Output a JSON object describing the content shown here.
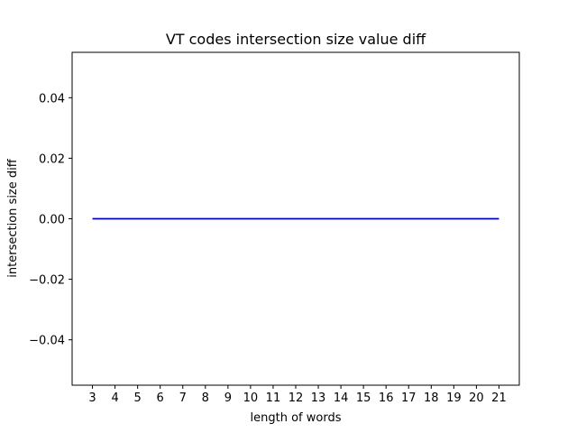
{
  "chart_data": {
    "type": "line",
    "title": "VT codes intersection size value diff",
    "xlabel": "length of words",
    "ylabel": "intersection size diff",
    "x": [
      3,
      4,
      5,
      6,
      7,
      8,
      9,
      10,
      11,
      12,
      13,
      14,
      15,
      16,
      17,
      18,
      19,
      20,
      21
    ],
    "series": [
      {
        "values": [
          0,
          0,
          0,
          0,
          0,
          0,
          0,
          0,
          0,
          0,
          0,
          0,
          0,
          0,
          0,
          0,
          0,
          0,
          0
        ],
        "color": "#0000cc"
      }
    ],
    "xlim": [
      2.1,
      21.9
    ],
    "ylim": [
      -0.055,
      0.055
    ],
    "xticks": [
      3,
      4,
      5,
      6,
      7,
      8,
      9,
      10,
      11,
      12,
      13,
      14,
      15,
      16,
      17,
      18,
      19,
      20,
      21
    ],
    "yticks": [
      -0.04,
      -0.02,
      0.0,
      0.02,
      0.04
    ],
    "ytick_labels": [
      "−0.04",
      "−0.02",
      "0.00",
      "0.02",
      "0.04"
    ],
    "grid": false,
    "legend": "none"
  }
}
